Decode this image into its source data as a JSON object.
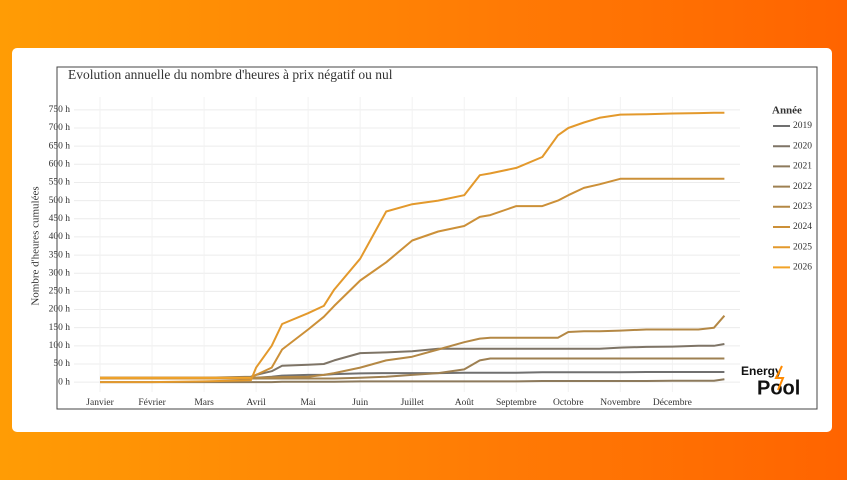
{
  "chart_data": {
    "type": "line",
    "title": "Evolution annuelle du nombre d'heures à prix négatif ou nul",
    "y_label": "Nombre d'heures cumulées",
    "legend_title": "Année",
    "legend": "right",
    "grid": true,
    "x": [
      0,
      1,
      2,
      2.9,
      3,
      3.3,
      3.5,
      4,
      4.3,
      4.5,
      5,
      5.5,
      6,
      6.5,
      7,
      7.3,
      7.5,
      8,
      8.5,
      8.8,
      9,
      9.3,
      9.6,
      10,
      10.5,
      11,
      11.5,
      11.8,
      12
    ],
    "xlim": [
      -0.5,
      12.3
    ],
    "xticks": [
      {
        "value": 0,
        "label": "Janvier"
      },
      {
        "value": 1,
        "label": "Février"
      },
      {
        "value": 2,
        "label": "Mars"
      },
      {
        "value": 3,
        "label": "Avril"
      },
      {
        "value": 4,
        "label": "Mai"
      },
      {
        "value": 5,
        "label": "Juin"
      },
      {
        "value": 6,
        "label": "Juillet"
      },
      {
        "value": 7,
        "label": "Août"
      },
      {
        "value": 8,
        "label": "Septembre"
      },
      {
        "value": 9,
        "label": "Octobre"
      },
      {
        "value": 10,
        "label": "Novembre"
      },
      {
        "value": 11,
        "label": "Décembre"
      }
    ],
    "ylim": [
      -74,
      868
    ],
    "yticks": [
      {
        "value": 0,
        "label": "0 h"
      },
      {
        "value": 50,
        "label": "50 h"
      },
      {
        "value": 100,
        "label": "100 h"
      },
      {
        "value": 150,
        "label": "150 h"
      },
      {
        "value": 200,
        "label": "200 h"
      },
      {
        "value": 250,
        "label": "250 h"
      },
      {
        "value": 300,
        "label": "300 h"
      },
      {
        "value": 350,
        "label": "350 h"
      },
      {
        "value": 400,
        "label": "400 h"
      },
      {
        "value": 450,
        "label": "450 h"
      },
      {
        "value": 500,
        "label": "500 h"
      },
      {
        "value": 550,
        "label": "550 h"
      },
      {
        "value": 600,
        "label": "600 h"
      },
      {
        "value": 650,
        "label": "650 h"
      },
      {
        "value": 700,
        "label": "700 h"
      },
      {
        "value": 750,
        "label": "750 h"
      }
    ],
    "series": [
      {
        "name": "2019",
        "color": "#707070",
        "values": [
          12,
          12,
          12,
          12,
          12,
          15,
          18,
          20,
          20,
          22,
          24,
          25,
          25,
          25,
          26,
          26,
          26,
          26,
          27,
          27,
          27,
          27,
          27,
          27,
          28,
          28,
          28,
          28,
          28
        ]
      },
      {
        "name": "2020",
        "color": "#7e7466",
        "values": [
          12,
          12,
          12,
          15,
          20,
          30,
          45,
          48,
          50,
          60,
          80,
          82,
          85,
          92,
          92,
          92,
          92,
          92,
          92,
          92,
          92,
          92,
          92,
          95,
          97,
          98,
          100,
          100,
          105
        ]
      },
      {
        "name": "2021",
        "color": "#8d7a5c",
        "values": [
          0,
          0,
          0,
          0,
          0,
          0,
          1,
          1,
          1,
          1,
          2,
          2,
          2,
          2,
          2,
          2,
          2,
          2,
          3,
          3,
          3,
          3,
          3,
          3,
          3,
          4,
          4,
          4,
          8
        ]
      },
      {
        "name": "2022",
        "color": "#9e8052",
        "values": [
          10,
          10,
          10,
          10,
          10,
          10,
          10,
          10,
          10,
          10,
          12,
          15,
          20,
          25,
          35,
          60,
          65,
          65,
          65,
          65,
          65,
          65,
          65,
          65,
          65,
          65,
          65,
          65,
          65
        ]
      },
      {
        "name": "2023",
        "color": "#b48845",
        "values": [
          12,
          12,
          12,
          12,
          12,
          13,
          14,
          15,
          20,
          25,
          40,
          60,
          70,
          90,
          110,
          120,
          122,
          122,
          122,
          122,
          138,
          140,
          140,
          142,
          145,
          145,
          145,
          150,
          183
        ]
      },
      {
        "name": "2024",
        "color": "#cc9038",
        "values": [
          10,
          10,
          10,
          12,
          20,
          40,
          90,
          145,
          180,
          210,
          280,
          330,
          390,
          415,
          430,
          455,
          460,
          485,
          485,
          500,
          515,
          535,
          545,
          560,
          560,
          560,
          560,
          560,
          560
        ]
      },
      {
        "name": "2025",
        "color": "#e3992c",
        "values": [
          0,
          0,
          2,
          5,
          40,
          100,
          160,
          190,
          210,
          255,
          340,
          470,
          490,
          500,
          515,
          570,
          575,
          590,
          620,
          680,
          700,
          715,
          728,
          737,
          738,
          740,
          741,
          742,
          742
        ]
      },
      {
        "name": "2026",
        "color": "#f2a328",
        "values": [
          12,
          12,
          12,
          12,
          null,
          null,
          null,
          null,
          null,
          null,
          null,
          null,
          null,
          null,
          null,
          null,
          null,
          null,
          null,
          null,
          null,
          null,
          null,
          null,
          null,
          null,
          null,
          null,
          null
        ]
      }
    ]
  },
  "logo": {
    "line1": "Energy",
    "line2": "Pool"
  }
}
